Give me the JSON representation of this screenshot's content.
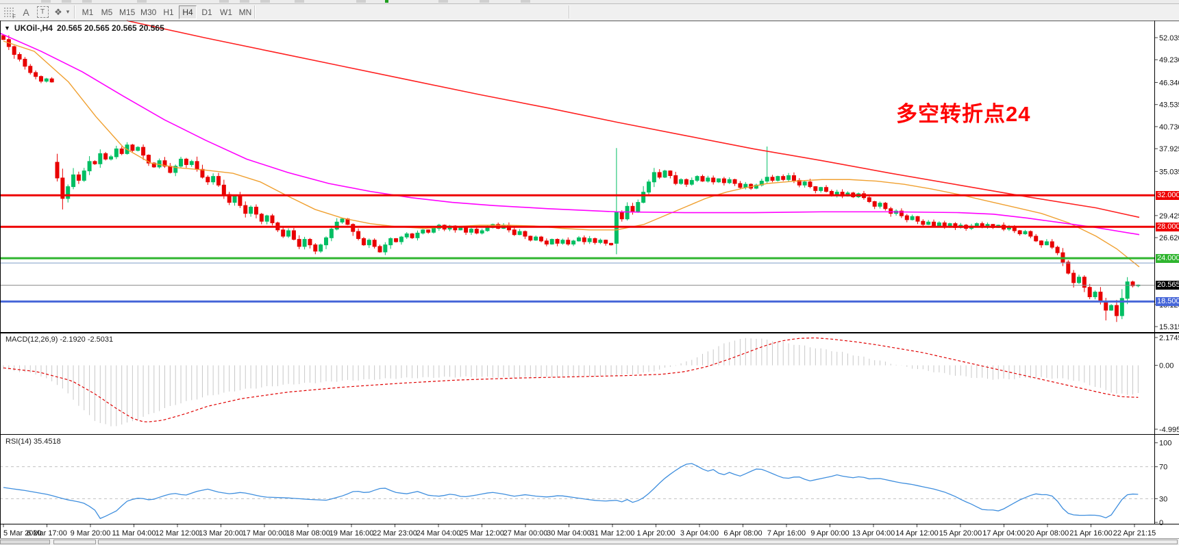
{
  "toolbar": {
    "icons": [
      {
        "name": "charts-grid-icon",
        "label": "F"
      },
      {
        "name": "text-label-icon",
        "label": "A"
      },
      {
        "name": "text-box-icon",
        "label": "T"
      },
      {
        "name": "shapes-icon",
        "label": "❖"
      },
      {
        "name": "dropdown-caret",
        "label": "▾"
      }
    ],
    "timeframes": [
      {
        "label": "M1",
        "active": false
      },
      {
        "label": "M5",
        "active": false
      },
      {
        "label": "M15",
        "active": false
      },
      {
        "label": "M30",
        "active": false
      },
      {
        "label": "H1",
        "active": false
      },
      {
        "label": "H4",
        "active": true
      },
      {
        "label": "D1",
        "active": false
      },
      {
        "label": "W1",
        "active": false
      },
      {
        "label": "MN",
        "active": false
      }
    ]
  },
  "chart": {
    "title": "UKOil-,H4",
    "ohlc_text": "20.565 20.565 20.565 20.565",
    "annotation": "多空转折点24",
    "annotation_color": "#FF0000"
  },
  "macd_panel": {
    "name": "MACD(12,26,9)",
    "values": "-2.1920 -2.5031",
    "ticks": [
      "2.1745",
      "0.00",
      "-4.9955"
    ],
    "tick_values": [
      2.1745,
      0.0,
      -4.9955
    ]
  },
  "rsi_panel": {
    "name": "RSI(14)",
    "values": "35.4518",
    "ticks": [
      "100",
      "70",
      "30",
      "0"
    ],
    "tick_values": [
      100,
      70,
      30,
      0
    ],
    "dashed_levels": [
      70,
      30
    ]
  },
  "price_axis": {
    "ticks": [
      "52.035",
      "49.230",
      "46.340",
      "43.535",
      "40.730",
      "37.925",
      "35.035",
      "29.425",
      "26.620",
      "18.120",
      "15.315"
    ],
    "tick_values": [
      52.035,
      49.23,
      46.34,
      43.535,
      40.73,
      37.925,
      35.035,
      29.425,
      26.62,
      18.12,
      15.315
    ]
  },
  "time_axis": {
    "labels": [
      "5 Mar 2020",
      "6 Mar 17:00",
      "9 Mar 20:00",
      "11 Mar 04:00",
      "12 Mar 12:00",
      "13 Mar 20:00",
      "17 Mar 00:00",
      "18 Mar 08:00",
      "19 Mar 16:00",
      "22 Mar 23:00",
      "24 Mar 04:00",
      "25 Mar 12:00",
      "27 Mar 00:00",
      "30 Mar 04:00",
      "31 Mar 12:00",
      "1 Apr 20:00",
      "3 Apr 04:00",
      "6 Apr 08:00",
      "7 Apr 16:00",
      "9 Apr 00:00",
      "13 Apr 04:00",
      "14 Apr 12:00",
      "15 Apr 20:00",
      "17 Apr 04:00",
      "20 Apr 08:00",
      "21 Apr 16:00",
      "22 Apr 21:15"
    ]
  },
  "levels": [
    {
      "price": 32.0,
      "label": "32.000",
      "color": "#EE0000",
      "width": 3,
      "badge_bg": "#EE0000"
    },
    {
      "price": 28.0,
      "label": "28.000",
      "color": "#EE0000",
      "width": 3,
      "badge_bg": "#EE0000"
    },
    {
      "price": 24.0,
      "label": "24.000",
      "color": "#2FB52F",
      "width": 3,
      "badge_bg": "#2FB52F"
    },
    {
      "price": 23.4,
      "label": null,
      "color": "#7E9CC8",
      "width": 1,
      "badge_bg": null
    },
    {
      "price": 20.565,
      "label": "20.565",
      "color": "#8a8a8a",
      "width": 1,
      "badge_bg": "#000000"
    },
    {
      "price": 18.5,
      "label": "18.500",
      "color": "#4666D8",
      "width": 3,
      "badge_bg": "#4666D8"
    }
  ],
  "chart_data": {
    "type": "candlestick+indicators",
    "symbol": "UKOil-",
    "period": "H4",
    "colors": {
      "up": "#00BE63",
      "down": "#E80000",
      "ma_fast": "#F0A030",
      "ma_mid": "#FF00FF",
      "ma_slow": "#FF2020",
      "macd_hist": "#C8C8C8",
      "macd_signal": "#E00000",
      "rsi": "#3E8EDE"
    },
    "closes": [
      51.8,
      50.9,
      49.9,
      49.3,
      48.4,
      47.6,
      47.1,
      46.5,
      46.8,
      46.4,
      34.2,
      31.6,
      33.1,
      34.6,
      33.9,
      35.1,
      36.3,
      36.0,
      37.3,
      36.6,
      36.9,
      37.9,
      37.3,
      38.4,
      37.7,
      38.1,
      37.1,
      36.1,
      35.6,
      36.4,
      35.7,
      34.9,
      35.7,
      36.6,
      35.9,
      36.3,
      35.3,
      34.3,
      33.7,
      34.4,
      33.3,
      32.1,
      31.1,
      31.9,
      30.7,
      29.7,
      30.5,
      29.6,
      28.7,
      29.4,
      28.5,
      27.6,
      26.8,
      27.5,
      26.4,
      25.5,
      26.4,
      25.7,
      24.9,
      25.7,
      26.6,
      27.7,
      28.6,
      29.0,
      28.3,
      27.4,
      26.5,
      25.7,
      26.3,
      25.5,
      24.8,
      25.7,
      26.5,
      26.1,
      26.7,
      27.1,
      26.6,
      27.2,
      27.6,
      27.3,
      27.8,
      28.2,
      27.7,
      28.1,
      27.6,
      27.9,
      27.3,
      27.7,
      27.2,
      27.5,
      27.9,
      28.3,
      27.8,
      28.2,
      27.6,
      27.0,
      27.4,
      26.8,
      26.3,
      26.7,
      26.2,
      25.8,
      26.4,
      25.9,
      26.3,
      25.8,
      26.2,
      26.6,
      26.1,
      26.5,
      26.0,
      26.3,
      25.9,
      25.7,
      29.8,
      29.0,
      30.6,
      29.9,
      31.1,
      32.4,
      33.7,
      34.9,
      34.3,
      35.1,
      34.5,
      33.5,
      34.0,
      33.4,
      33.9,
      34.4,
      33.8,
      34.2,
      33.7,
      34.1,
      33.6,
      34.0,
      33.5,
      33.0,
      33.4,
      32.9,
      33.3,
      33.8,
      34.3,
      33.9,
      34.4,
      34.0,
      34.5,
      33.9,
      33.3,
      33.7,
      33.1,
      32.6,
      33.0,
      32.5,
      32.0,
      32.4,
      31.9,
      32.3,
      31.8,
      32.2,
      31.7,
      31.2,
      30.6,
      31.0,
      30.3,
      29.7,
      30.0,
      29.4,
      28.9,
      29.3,
      28.7,
      28.3,
      28.6,
      28.1,
      28.5,
      28.0,
      28.4,
      27.9,
      28.2,
      27.8,
      28.1,
      28.4,
      28.0,
      28.3,
      27.9,
      28.2,
      27.7,
      28.0,
      27.5,
      27.1,
      27.4,
      26.8,
      26.2,
      25.7,
      26.1,
      25.4,
      24.7,
      23.5,
      22.1,
      20.9,
      21.6,
      20.3,
      19.1,
      19.7,
      18.5,
      17.4,
      18.0,
      16.7,
      18.9,
      21.0,
      20.5,
      20.6
    ],
    "first_open": 52.3,
    "open_overrides": {
      "10": 36.2,
      "114": 25.9
    },
    "wick_overrides": {
      "11": {
        "low": 30.2
      },
      "114": {
        "high": 38.0
      },
      "142": {
        "high": 38.2
      },
      "205": {
        "low": 16.1
      },
      "207": {
        "low": 15.9
      }
    },
    "ma_fast_points": [
      [
        5,
        51.6
      ],
      [
        50,
        50.3
      ],
      [
        100,
        46.4
      ],
      [
        140,
        42.0
      ],
      [
        180,
        38.1
      ],
      [
        220,
        36.1
      ],
      [
        260,
        35.5
      ],
      [
        300,
        35.2
      ],
      [
        340,
        34.8
      ],
      [
        380,
        33.7
      ],
      [
        420,
        31.9
      ],
      [
        460,
        30.2
      ],
      [
        500,
        29.1
      ],
      [
        540,
        28.4
      ],
      [
        580,
        28.0
      ],
      [
        620,
        27.8
      ],
      [
        660,
        28.0
      ],
      [
        700,
        28.2
      ],
      [
        740,
        28.2
      ],
      [
        780,
        28.1
      ],
      [
        820,
        27.8
      ],
      [
        860,
        27.6
      ],
      [
        900,
        27.6
      ],
      [
        940,
        28.3
      ],
      [
        970,
        29.4
      ],
      [
        1000,
        30.5
      ],
      [
        1030,
        31.6
      ],
      [
        1060,
        32.4
      ],
      [
        1090,
        33.0
      ],
      [
        1120,
        33.5
      ],
      [
        1160,
        33.8
      ],
      [
        1200,
        34.0
      ],
      [
        1240,
        34.0
      ],
      [
        1280,
        33.8
      ],
      [
        1320,
        33.4
      ],
      [
        1360,
        32.8
      ],
      [
        1400,
        32.1
      ],
      [
        1440,
        31.3
      ],
      [
        1480,
        30.5
      ],
      [
        1520,
        29.7
      ],
      [
        1560,
        28.5
      ],
      [
        1600,
        26.8
      ],
      [
        1630,
        25.2
      ],
      [
        1663,
        22.9
      ]
    ],
    "ma_mid_points": [
      [
        0,
        52.6
      ],
      [
        60,
        50.3
      ],
      [
        120,
        47.7
      ],
      [
        180,
        44.6
      ],
      [
        240,
        41.6
      ],
      [
        300,
        39.0
      ],
      [
        360,
        36.6
      ],
      [
        420,
        34.9
      ],
      [
        480,
        33.5
      ],
      [
        540,
        32.5
      ],
      [
        600,
        31.7
      ],
      [
        660,
        31.1
      ],
      [
        720,
        30.7
      ],
      [
        800,
        30.3
      ],
      [
        900,
        29.9
      ],
      [
        1000,
        29.8
      ],
      [
        1100,
        29.8
      ],
      [
        1200,
        29.9
      ],
      [
        1300,
        29.9
      ],
      [
        1400,
        29.8
      ],
      [
        1450,
        29.6
      ],
      [
        1500,
        29.1
      ],
      [
        1550,
        28.5
      ],
      [
        1600,
        27.9
      ],
      [
        1663,
        27.0
      ]
    ],
    "ma_slow_points": [
      [
        185,
        54.2
      ],
      [
        300,
        52.0
      ],
      [
        400,
        50.2
      ],
      [
        500,
        48.4
      ],
      [
        600,
        46.6
      ],
      [
        700,
        44.8
      ],
      [
        800,
        43.1
      ],
      [
        900,
        41.3
      ],
      [
        1000,
        39.6
      ],
      [
        1100,
        37.9
      ],
      [
        1200,
        36.4
      ],
      [
        1300,
        34.8
      ],
      [
        1400,
        33.3
      ],
      [
        1500,
        31.8
      ],
      [
        1600,
        30.4
      ],
      [
        1663,
        29.2
      ]
    ],
    "macd_hist_anchors": [
      [
        0,
        -0.3
      ],
      [
        0.03,
        -0.7
      ],
      [
        0.05,
        -1.6
      ],
      [
        0.065,
        -3.0
      ],
      [
        0.08,
        -4.3
      ],
      [
        0.095,
        -4.8
      ],
      [
        0.11,
        -4.5
      ],
      [
        0.13,
        -3.8
      ],
      [
        0.15,
        -3.1
      ],
      [
        0.18,
        -2.4
      ],
      [
        0.21,
        -1.9
      ],
      [
        0.25,
        -1.5
      ],
      [
        0.3,
        -1.2
      ],
      [
        0.35,
        -1.0
      ],
      [
        0.4,
        -0.9
      ],
      [
        0.45,
        -0.95
      ],
      [
        0.5,
        -0.9
      ],
      [
        0.54,
        -0.8
      ],
      [
        0.565,
        -0.6
      ],
      [
        0.58,
        -0.3
      ],
      [
        0.6,
        0.2
      ],
      [
        0.615,
        0.8
      ],
      [
        0.63,
        1.5
      ],
      [
        0.645,
        2.0
      ],
      [
        0.66,
        2.15
      ],
      [
        0.68,
        1.9
      ],
      [
        0.7,
        1.6
      ],
      [
        0.72,
        1.3
      ],
      [
        0.74,
        1.0
      ],
      [
        0.755,
        0.7
      ],
      [
        0.77,
        0.4
      ],
      [
        0.785,
        0.1
      ],
      [
        0.8,
        -0.2
      ],
      [
        0.82,
        -0.5
      ],
      [
        0.84,
        -0.8
      ],
      [
        0.86,
        -1.0
      ],
      [
        0.875,
        -1.1
      ],
      [
        0.89,
        -1.05
      ],
      [
        0.91,
        -0.95
      ],
      [
        0.925,
        -1.0
      ],
      [
        0.94,
        -1.1
      ],
      [
        0.95,
        -1.3
      ],
      [
        0.96,
        -1.6
      ],
      [
        0.97,
        -1.9
      ],
      [
        0.98,
        -2.2
      ],
      [
        0.99,
        -2.3
      ],
      [
        1.0,
        -2.19
      ]
    ],
    "macd_signal_anchors": [
      [
        0,
        -0.2
      ],
      [
        0.03,
        -0.5
      ],
      [
        0.06,
        -1.2
      ],
      [
        0.08,
        -2.2
      ],
      [
        0.1,
        -3.4
      ],
      [
        0.115,
        -4.2
      ],
      [
        0.125,
        -4.45
      ],
      [
        0.14,
        -4.3
      ],
      [
        0.16,
        -3.8
      ],
      [
        0.18,
        -3.2
      ],
      [
        0.21,
        -2.6
      ],
      [
        0.25,
        -2.1
      ],
      [
        0.3,
        -1.7
      ],
      [
        0.35,
        -1.4
      ],
      [
        0.4,
        -1.15
      ],
      [
        0.45,
        -1.0
      ],
      [
        0.5,
        -0.9
      ],
      [
        0.55,
        -0.8
      ],
      [
        0.58,
        -0.7
      ],
      [
        0.6,
        -0.5
      ],
      [
        0.62,
        -0.1
      ],
      [
        0.64,
        0.5
      ],
      [
        0.655,
        1.0
      ],
      [
        0.67,
        1.5
      ],
      [
        0.685,
        1.9
      ],
      [
        0.7,
        2.1
      ],
      [
        0.715,
        2.15
      ],
      [
        0.73,
        2.05
      ],
      [
        0.75,
        1.85
      ],
      [
        0.77,
        1.6
      ],
      [
        0.79,
        1.3
      ],
      [
        0.81,
        1.0
      ],
      [
        0.83,
        0.6
      ],
      [
        0.85,
        0.2
      ],
      [
        0.87,
        -0.2
      ],
      [
        0.89,
        -0.6
      ],
      [
        0.91,
        -1.0
      ],
      [
        0.93,
        -1.4
      ],
      [
        0.95,
        -1.8
      ],
      [
        0.97,
        -2.2
      ],
      [
        0.985,
        -2.45
      ],
      [
        1.0,
        -2.5031
      ]
    ],
    "rsi_anchors": [
      [
        0,
        44
      ],
      [
        0.02,
        40
      ],
      [
        0.04,
        35
      ],
      [
        0.055,
        29
      ],
      [
        0.07,
        25
      ],
      [
        0.08,
        17
      ],
      [
        0.085,
        5
      ],
      [
        0.09,
        8
      ],
      [
        0.1,
        15
      ],
      [
        0.105,
        22
      ],
      [
        0.11,
        28
      ],
      [
        0.12,
        31
      ],
      [
        0.13,
        28
      ],
      [
        0.14,
        33
      ],
      [
        0.15,
        37
      ],
      [
        0.16,
        34
      ],
      [
        0.17,
        39
      ],
      [
        0.18,
        42
      ],
      [
        0.19,
        38
      ],
      [
        0.2,
        36
      ],
      [
        0.21,
        38
      ],
      [
        0.22,
        35
      ],
      [
        0.23,
        32
      ],
      [
        0.25,
        31
      ],
      [
        0.27,
        29
      ],
      [
        0.285,
        28
      ],
      [
        0.3,
        34
      ],
      [
        0.31,
        40
      ],
      [
        0.32,
        37
      ],
      [
        0.33,
        42
      ],
      [
        0.335,
        44
      ],
      [
        0.345,
        38
      ],
      [
        0.355,
        36
      ],
      [
        0.365,
        39
      ],
      [
        0.375,
        34
      ],
      [
        0.385,
        33
      ],
      [
        0.395,
        36
      ],
      [
        0.405,
        32
      ],
      [
        0.415,
        34
      ],
      [
        0.43,
        38
      ],
      [
        0.44,
        36
      ],
      [
        0.45,
        33
      ],
      [
        0.46,
        35
      ],
      [
        0.47,
        33
      ],
      [
        0.48,
        32
      ],
      [
        0.49,
        34
      ],
      [
        0.5,
        32
      ],
      [
        0.51,
        30
      ],
      [
        0.52,
        28
      ],
      [
        0.53,
        27
      ],
      [
        0.54,
        28
      ],
      [
        0.545,
        26
      ],
      [
        0.55,
        29
      ],
      [
        0.555,
        25
      ],
      [
        0.56,
        28
      ],
      [
        0.565,
        32
      ],
      [
        0.57,
        38
      ],
      [
        0.575,
        45
      ],
      [
        0.58,
        52
      ],
      [
        0.585,
        58
      ],
      [
        0.59,
        63
      ],
      [
        0.595,
        68
      ],
      [
        0.6,
        72
      ],
      [
        0.605,
        75
      ],
      [
        0.61,
        72
      ],
      [
        0.615,
        68
      ],
      [
        0.62,
        64
      ],
      [
        0.625,
        67
      ],
      [
        0.63,
        62
      ],
      [
        0.635,
        60
      ],
      [
        0.64,
        63
      ],
      [
        0.645,
        60
      ],
      [
        0.65,
        58
      ],
      [
        0.655,
        62
      ],
      [
        0.66,
        65
      ],
      [
        0.665,
        68
      ],
      [
        0.67,
        66
      ],
      [
        0.675,
        63
      ],
      [
        0.68,
        60
      ],
      [
        0.685,
        57
      ],
      [
        0.69,
        55
      ],
      [
        0.7,
        58
      ],
      [
        0.705,
        55
      ],
      [
        0.71,
        52
      ],
      [
        0.72,
        55
      ],
      [
        0.73,
        58
      ],
      [
        0.735,
        60
      ],
      [
        0.74,
        58
      ],
      [
        0.75,
        56
      ],
      [
        0.755,
        58
      ],
      [
        0.76,
        56
      ],
      [
        0.765,
        54
      ],
      [
        0.77,
        56
      ],
      [
        0.78,
        53
      ],
      [
        0.79,
        50
      ],
      [
        0.8,
        48
      ],
      [
        0.81,
        45
      ],
      [
        0.82,
        42
      ],
      [
        0.83,
        38
      ],
      [
        0.84,
        32
      ],
      [
        0.845,
        28
      ],
      [
        0.85,
        25
      ],
      [
        0.855,
        22
      ],
      [
        0.86,
        18
      ],
      [
        0.865,
        15
      ],
      [
        0.87,
        17
      ],
      [
        0.875,
        14
      ],
      [
        0.88,
        16
      ],
      [
        0.885,
        20
      ],
      [
        0.89,
        24
      ],
      [
        0.895,
        28
      ],
      [
        0.9,
        31
      ],
      [
        0.905,
        34
      ],
      [
        0.91,
        36
      ],
      [
        0.915,
        35
      ],
      [
        0.92,
        35
      ],
      [
        0.925,
        33
      ],
      [
        0.93,
        25
      ],
      [
        0.935,
        15
      ],
      [
        0.94,
        10
      ],
      [
        0.95,
        9
      ],
      [
        0.96,
        9.5
      ],
      [
        0.965,
        9
      ],
      [
        0.97,
        7
      ],
      [
        0.973,
        5
      ],
      [
        0.978,
        12
      ],
      [
        0.983,
        24
      ],
      [
        0.988,
        33
      ],
      [
        0.992,
        36
      ],
      [
        1.0,
        35.45
      ]
    ]
  }
}
